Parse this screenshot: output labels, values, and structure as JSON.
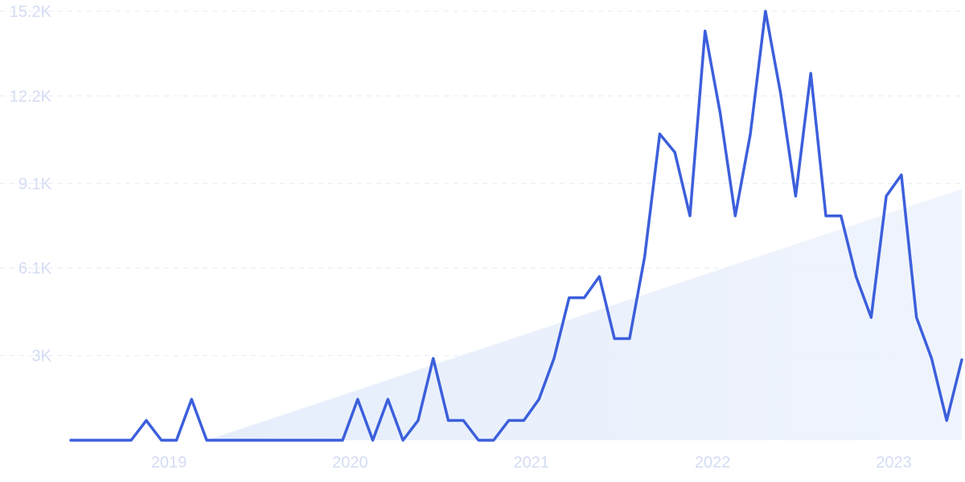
{
  "chart_data": {
    "type": "line",
    "title": "",
    "xlabel": "",
    "ylabel": "",
    "x_ticks": [
      "2019",
      "2020",
      "2021",
      "2022",
      "2023"
    ],
    "y_ticks": [
      "3K",
      "6.1K",
      "9.1K",
      "12.2K",
      "15.2K"
    ],
    "y_tick_values": [
      3000,
      6100,
      9100,
      12200,
      15200
    ],
    "ylim": [
      0,
      15200
    ],
    "xlim": [
      "2018-07",
      "2023-06"
    ],
    "grid": true,
    "colors": {
      "line": "#3c5fdc",
      "trend": "#eaf1fc",
      "tick_text": "#d3dcf3",
      "grid": "#e6ebf7"
    },
    "series": [
      {
        "x": [
          "2018-07",
          "2018-08",
          "2018-09",
          "2018-10",
          "2018-11",
          "2018-12",
          "2019-01",
          "2019-02",
          "2019-03",
          "2019-04",
          "2019-05",
          "2019-06",
          "2019-07",
          "2019-08",
          "2019-09",
          "2019-10",
          "2019-11",
          "2019-12",
          "2020-01",
          "2020-02",
          "2020-03",
          "2020-04",
          "2020-05",
          "2020-06",
          "2020-07",
          "2020-08",
          "2020-09",
          "2020-10",
          "2020-11",
          "2020-12",
          "2021-01",
          "2021-02",
          "2021-03",
          "2021-04",
          "2021-05",
          "2021-06",
          "2021-07",
          "2021-08",
          "2021-09",
          "2021-10",
          "2021-11",
          "2021-12",
          "2022-01",
          "2022-02",
          "2022-03",
          "2022-04",
          "2022-05",
          "2022-06",
          "2022-07",
          "2022-08",
          "2022-09",
          "2022-10",
          "2022-11",
          "2022-12",
          "2023-01",
          "2023-02",
          "2023-03",
          "2023-04",
          "2023-05",
          "2023-06"
        ],
        "y": [
          0,
          0,
          0,
          0,
          0,
          700,
          0,
          0,
          1450,
          0,
          0,
          0,
          0,
          0,
          0,
          0,
          0,
          0,
          0,
          1450,
          0,
          1450,
          0,
          700,
          2900,
          700,
          700,
          0,
          0,
          700,
          700,
          1450,
          2900,
          5050,
          5050,
          5800,
          3600,
          3600,
          6500,
          10850,
          10200,
          7950,
          14500,
          11600,
          7950,
          10850,
          15200,
          12300,
          8650,
          13000,
          7950,
          7950,
          5800,
          4350,
          8650,
          9400,
          4350,
          2900,
          700,
          2850
        ]
      }
    ],
    "trend": {
      "start": [
        "2019-04",
        0
      ],
      "end": [
        "2023-06",
        8900
      ]
    }
  }
}
